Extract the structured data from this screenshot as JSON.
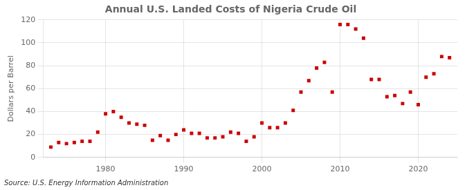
{
  "chart_data": {
    "type": "scatter",
    "title": "Annual U.S. Landed Costs of Nigeria Crude Oil",
    "ylabel": "Dollars per Barrel",
    "annotation": "Source: U.S. Energy Information Administration",
    "x": [
      1973,
      1974,
      1975,
      1976,
      1977,
      1978,
      1979,
      1980,
      1981,
      1982,
      1983,
      1984,
      1985,
      1986,
      1987,
      1988,
      1989,
      1990,
      1991,
      1992,
      1993,
      1994,
      1995,
      1996,
      1997,
      1998,
      1999,
      2000,
      2001,
      2002,
      2003,
      2004,
      2005,
      2006,
      2007,
      2008,
      2009,
      2010,
      2011,
      2012,
      2013,
      2014,
      2015,
      2016,
      2017,
      2018,
      2019,
      2020,
      2021,
      2022,
      2023,
      2024
    ],
    "values": [
      9,
      13,
      12,
      13,
      14,
      14,
      22,
      38,
      40,
      35,
      30,
      29,
      28,
      15,
      19,
      15,
      20,
      24,
      21,
      21,
      17,
      17,
      18,
      22,
      21,
      14,
      18,
      30,
      26,
      26,
      30,
      41,
      57,
      67,
      78,
      83,
      57,
      116,
      116,
      112,
      104,
      68,
      68,
      53,
      54,
      47,
      57,
      46,
      70,
      73,
      88,
      87
    ],
    "color": "#cc0000",
    "marker": "square",
    "xlim": [
      1972,
      2025
    ],
    "xticks": [
      1980,
      1990,
      2000,
      2010,
      2020
    ],
    "ylim": [
      0,
      120
    ],
    "yticks": [
      0,
      20,
      40,
      60,
      80,
      100,
      120
    ],
    "grid": true
  }
}
